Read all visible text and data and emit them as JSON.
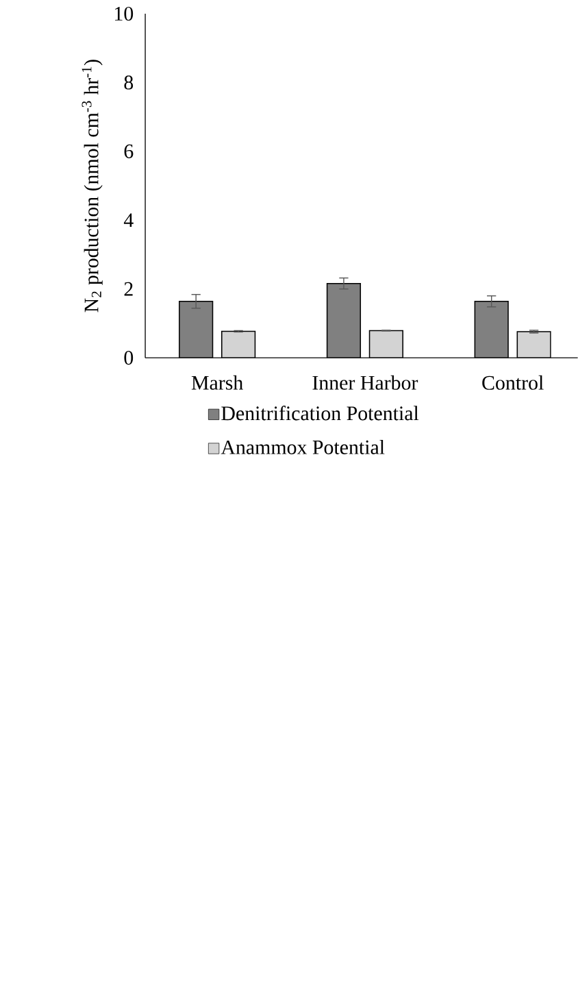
{
  "chart_data": {
    "type": "bar",
    "ylabel": "N$_{2}$ production (nmol cm$^{-3}$ hr$^{-1}$)",
    "categories": [
      "Marsh",
      "Inner Harbor",
      "Control"
    ],
    "series": [
      {
        "name": "Denitrification Potential",
        "color": "#808080",
        "values": [
          1.64,
          2.16,
          1.64
        ],
        "errors": [
          0.2,
          0.16,
          0.16
        ]
      },
      {
        "name": "Anammox Potential",
        "color": "#d3d3d3",
        "values": [
          0.77,
          0.79,
          0.76
        ],
        "errors": [
          0.02,
          0.01,
          0.04
        ]
      }
    ],
    "ylim": [
      0,
      10
    ],
    "yticks": [
      0,
      2,
      4,
      6,
      8,
      10
    ],
    "grid": false,
    "legend": "bottom"
  }
}
